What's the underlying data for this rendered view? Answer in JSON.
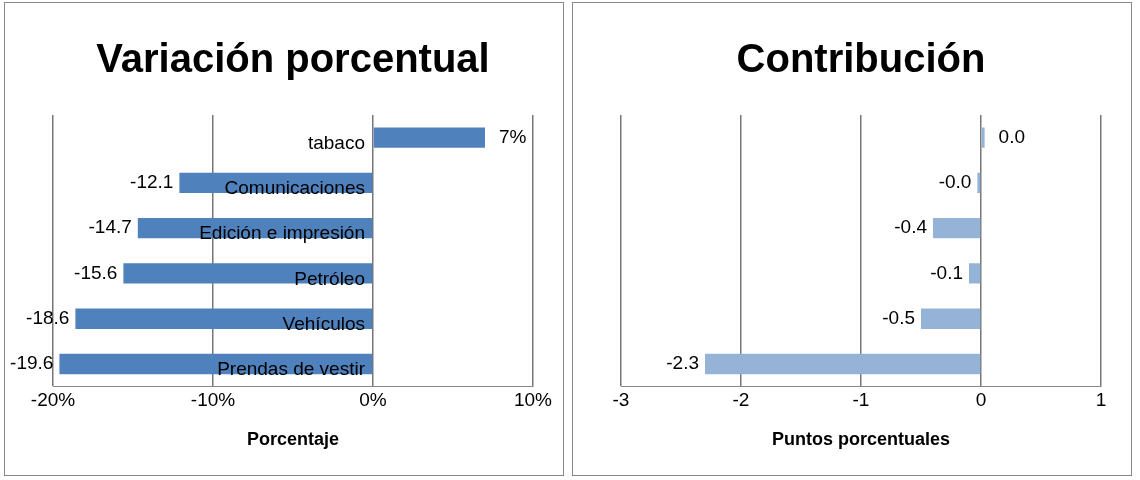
{
  "chart_data": [
    {
      "type": "bar",
      "orientation": "horizontal",
      "title": "Variación porcentual",
      "xlabel": "Porcentaje",
      "categories": [
        "tabaco",
        "Comunicaciones",
        "Edición e impresión",
        "Petróleo",
        "Vehículos",
        "Prendas de vestir"
      ],
      "values": [
        7,
        -12.1,
        -14.7,
        -15.6,
        -18.6,
        -19.6
      ],
      "value_labels": [
        "7%",
        "-12.1",
        "-14.7",
        "-15.6",
        "-18.6",
        "-19.6"
      ],
      "color": "#4f81bd",
      "xlim": [
        -20,
        10
      ],
      "xticks": [
        {
          "value": -20,
          "label": "-20%"
        },
        {
          "value": -10,
          "label": "-10%"
        },
        {
          "value": 0,
          "label": "0%"
        },
        {
          "value": 10,
          "label": "10%"
        }
      ],
      "grid": "x",
      "legend": false
    },
    {
      "type": "bar",
      "orientation": "horizontal",
      "title": "Contribución",
      "xlabel": "Puntos porcentuales",
      "categories": [
        null,
        null,
        null,
        null,
        null,
        null
      ],
      "values": [
        0.03,
        -0.03,
        -0.4,
        -0.1,
        -0.5,
        -2.3
      ],
      "value_labels": [
        "0.0",
        "-0.0",
        "-0.4",
        "-0.1",
        "-0.5",
        "-2.3"
      ],
      "color": "#95b3d7",
      "xlim": [
        -3,
        1
      ],
      "xticks": [
        -3,
        -2,
        -1,
        0,
        1
      ],
      "grid": "x",
      "legend": false
    }
  ]
}
